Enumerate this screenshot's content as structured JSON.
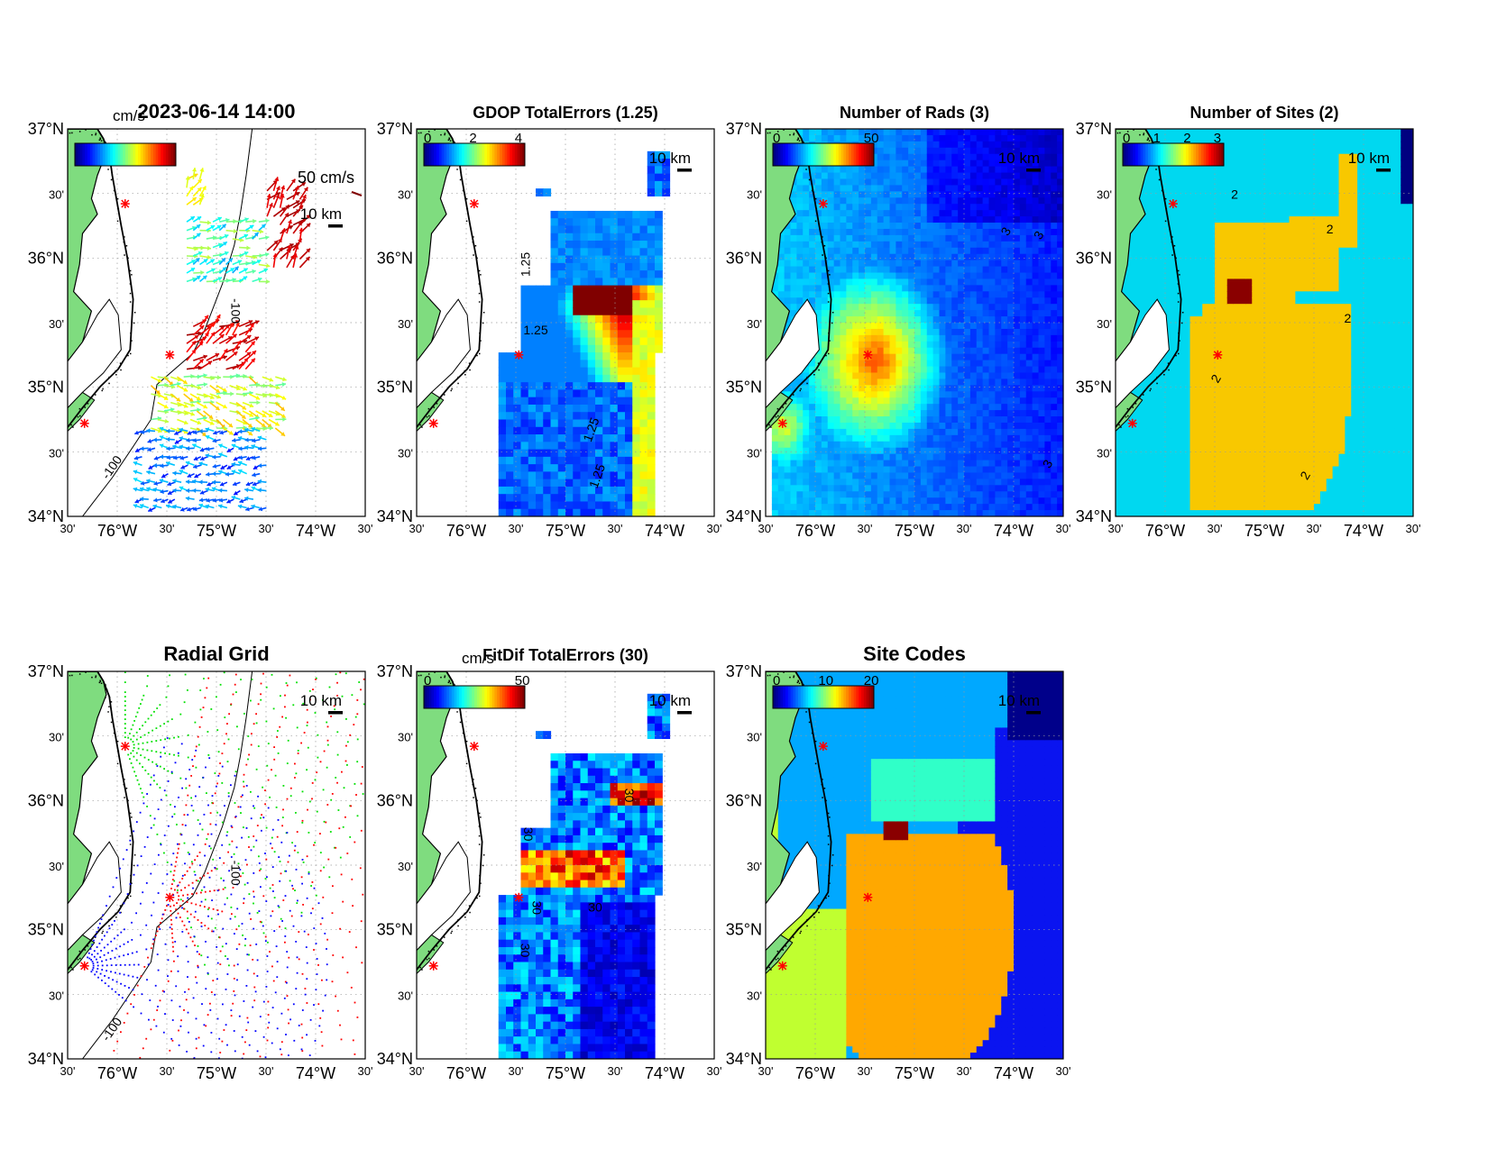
{
  "figure": {
    "panels": [
      {
        "id": "vectors",
        "title": "2023-06-14 14:00",
        "cbar_unit": "cm/s",
        "cbar_ticks": [],
        "scale_label": "50 cm/s",
        "scalebar": "10 km",
        "contour_labels": [
          "-100",
          "-100"
        ]
      },
      {
        "id": "gdop",
        "title": "GDOP TotalErrors (1.25)",
        "cbar_unit": "",
        "cbar_ticks": [
          "0",
          "2",
          "4"
        ],
        "scale_label": "",
        "scalebar": "10 km",
        "contour_labels": [
          "1.25",
          "1.25",
          "1.25",
          "1.25"
        ]
      },
      {
        "id": "rads",
        "title": "Number of Rads (3)",
        "cbar_unit": "",
        "cbar_ticks": [
          "0",
          "50"
        ],
        "scale_label": "",
        "scalebar": "10 km",
        "contour_labels": [
          "3",
          "3",
          "3"
        ]
      },
      {
        "id": "sites",
        "title": "Number of Sites (2)",
        "cbar_unit": "",
        "cbar_ticks": [
          "0",
          "1",
          "2",
          "3"
        ],
        "scale_label": "",
        "scalebar": "10 km",
        "contour_labels": [
          "2",
          "2",
          "2",
          "2",
          "2"
        ]
      },
      {
        "id": "radial",
        "title": "Radial Grid",
        "cbar_unit": "",
        "cbar_ticks": [],
        "scale_label": "",
        "scalebar": "10 km",
        "contour_labels": [
          "-100",
          "-100"
        ]
      },
      {
        "id": "fitdif",
        "title": "FitDif TotalErrors (30)",
        "cbar_unit": "cm/s",
        "cbar_ticks": [
          "0",
          "50"
        ],
        "scale_label": "",
        "scalebar": "10 km",
        "contour_labels": [
          "30",
          "30",
          "30",
          "30",
          "30"
        ]
      },
      {
        "id": "codes",
        "title": "Site Codes",
        "cbar_unit": "",
        "cbar_ticks": [
          "0",
          "10",
          "20"
        ],
        "scale_label": "",
        "scalebar": "10 km",
        "contour_labels": []
      }
    ],
    "lat_labels": [
      "37°N",
      "30'",
      "36°N",
      "30'",
      "35°N",
      "30'",
      "34°N"
    ],
    "lon_labels": [
      "30'",
      "76°W",
      "30'",
      "75°W",
      "30'",
      "74°W",
      "30'"
    ],
    "map_extent": {
      "lon": [
        -76.5,
        -73.5
      ],
      "lat": [
        34.0,
        37.0
      ]
    },
    "grid": "dotted",
    "colormap": "jet",
    "colors": {
      "land": "#7fdc7f",
      "coast": "#000000",
      "site_marker": "#ff0000",
      "radial_north": "#00e000",
      "radial_center": "#ff0000",
      "radial_south": "#0000ff",
      "sites_one": "#00d8f0",
      "sites_two": "#f8c800",
      "sites_three": "#8a0000",
      "sites_zero": "#000080",
      "code_a": "#00a8ff",
      "code_b": "#30ffc8",
      "code_c": "#ffa800",
      "code_d": "#c0ff30",
      "code_e": "#0a14f0",
      "code_f": "#00008a",
      "code_g": "#8a0000"
    },
    "sites": [
      {
        "lon": -75.92,
        "lat": 36.42
      },
      {
        "lon": -75.47,
        "lat": 35.25
      },
      {
        "lon": -76.33,
        "lat": 34.72
      }
    ]
  }
}
